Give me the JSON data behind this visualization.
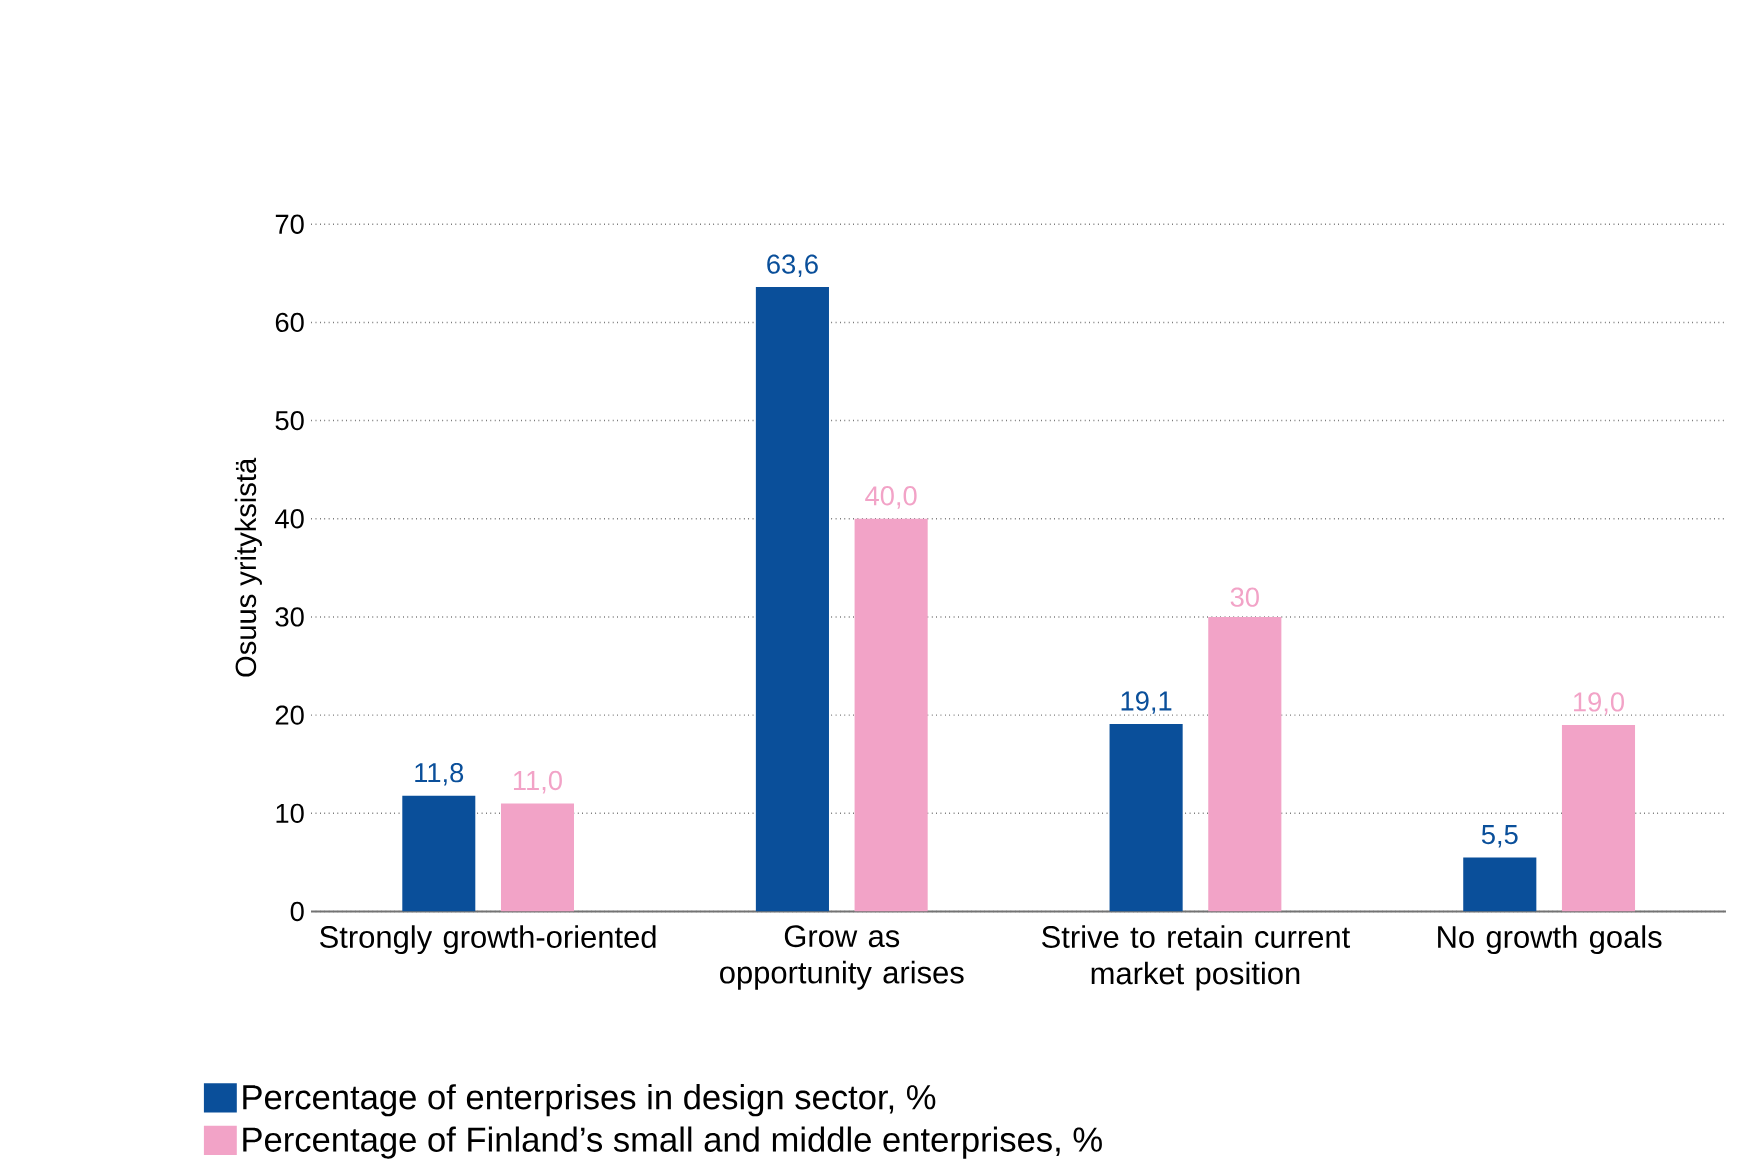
{
  "chart_data": {
    "type": "bar",
    "ylabel": "Osuus yrityksistä",
    "categories": [
      "Strongly growth-oriented",
      "Grow as opportunity arises",
      "Strive to retain current market position",
      "No growth goals"
    ],
    "series": [
      {
        "name": "Percentage of enterprises in design sector, %",
        "color": "#0a4f9a",
        "values": [
          11.8,
          63.6,
          19.1,
          5.5
        ],
        "value_labels": [
          "11,8",
          "63,6",
          "19,1",
          "5,5"
        ]
      },
      {
        "name": "Percentage of  Finland’s small and middle enterprises, %",
        "color": "#f2a3c7",
        "values": [
          11.0,
          40.0,
          30,
          19.0
        ],
        "value_labels": [
          "11,0",
          "40,0",
          "30",
          "19,0"
        ]
      }
    ],
    "ylim": [
      0,
      70
    ],
    "yticks": [
      0,
      10,
      20,
      30,
      40,
      50,
      60,
      70
    ],
    "grid": "y",
    "legend": "bottom"
  }
}
